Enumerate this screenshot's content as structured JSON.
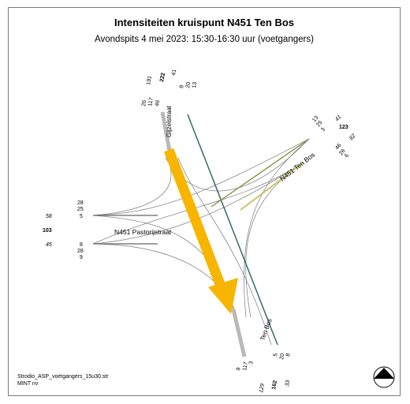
{
  "title": "Intensiteiten kruispunt N451 Ten Bos",
  "subtitle": "Avondspits 4 mei 2023: 15:30-16:30 uur (voetgangers)",
  "footer": {
    "file": "Strodio_ASP_voetgangers_15u30.str",
    "company": "MINT nv"
  },
  "streets": {
    "north": "Gijzelstraat",
    "west": "N451 Pastorijstraat",
    "east": "N451 Ten Bos",
    "south": "Ten Bos"
  },
  "counts": {
    "north_in": [
      "191",
      "222",
      "41"
    ],
    "north_out": [
      "8",
      "20",
      "13"
    ],
    "north_turns": [
      "26",
      "117",
      "46"
    ],
    "east_top": [
      "13",
      "25",
      "3"
    ],
    "east_totals": [
      "41",
      "123",
      "82"
    ],
    "east_bottom": [
      "46",
      "28",
      "6"
    ],
    "west_top": [
      "28",
      "25",
      "5"
    ],
    "west_totals": [
      "58",
      "103",
      "45"
    ],
    "west_bottom": [
      "8",
      "28",
      "9"
    ],
    "south_left": [
      "9",
      "117",
      "3"
    ],
    "south_right": [
      "5",
      "20",
      "8"
    ],
    "south_totals": [
      "129",
      "162",
      "33"
    ]
  },
  "colors": {
    "arrow": "#f7b500",
    "north_link": "#2f6e68",
    "east_link": "#7f8f3a",
    "road_grey": "#b9b9b9"
  },
  "icon": "compass-icon"
}
